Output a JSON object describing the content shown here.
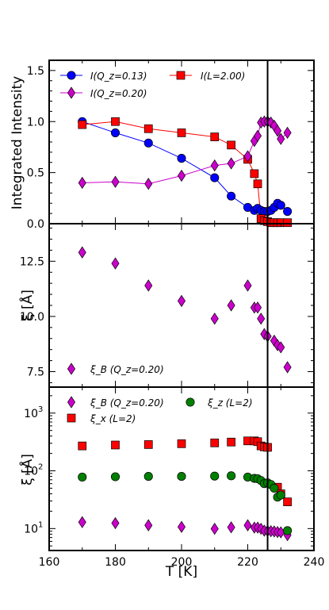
{
  "chart_data": [
    {
      "type": "line",
      "ylabel": "Integrated Intensity",
      "xlim": [
        160,
        240
      ],
      "ylim": [
        0.0,
        1.6
      ],
      "yticks": [
        "0.0",
        "0.5",
        "1.0",
        "1.5"
      ],
      "vline_x": 226,
      "legend": "top-left, two columns",
      "series": [
        {
          "name": "I(Q_z=0.13)",
          "color": "#0000ff",
          "marker": "circle",
          "line": true,
          "x": [
            170,
            180,
            190,
            200,
            210,
            215,
            220,
            222,
            223,
            224,
            225,
            226,
            227,
            228,
            229,
            230,
            232
          ],
          "y": [
            1.0,
            0.89,
            0.79,
            0.64,
            0.45,
            0.27,
            0.16,
            0.13,
            0.15,
            0.13,
            0.12,
            0.12,
            0.13,
            0.16,
            0.2,
            0.18,
            0.12
          ]
        },
        {
          "name": "I(L=2.00)",
          "color": "#ff0000",
          "marker": "square",
          "line": true,
          "x": [
            170,
            180,
            190,
            200,
            210,
            215,
            220,
            222,
            223,
            224,
            225,
            226,
            227,
            228,
            229,
            230,
            232
          ],
          "y": [
            0.97,
            1.0,
            0.93,
            0.89,
            0.85,
            0.77,
            0.63,
            0.49,
            0.39,
            0.05,
            0.03,
            0.02,
            0.01,
            0.01,
            0.01,
            0.01,
            0.01
          ]
        },
        {
          "name": "I(Q_z=0.20)",
          "color": "#cc00cc",
          "marker": "diamond",
          "line": true,
          "x": [
            170,
            180,
            190,
            200,
            210,
            215,
            220,
            222,
            223,
            224,
            225,
            226,
            227,
            228,
            229,
            230,
            232
          ],
          "y": [
            0.4,
            0.41,
            0.39,
            0.47,
            0.57,
            0.59,
            0.66,
            0.81,
            0.86,
            0.99,
            1.0,
            1.0,
            0.99,
            0.96,
            0.91,
            0.83,
            0.89
          ]
        }
      ]
    },
    {
      "type": "scatter",
      "ylabel": "ξ [Å]",
      "xlim": [
        160,
        240
      ],
      "ylim": [
        6.8,
        14.2
      ],
      "yticks": [
        "7.5",
        "10.0",
        "12.5"
      ],
      "vline_x": 226,
      "legend": "bottom-left",
      "series": [
        {
          "name": "ξ_B (Q_z=0.20)",
          "color": "#cc00cc",
          "marker": "diamond",
          "x": [
            170,
            180,
            190,
            200,
            210,
            215,
            220,
            222,
            223,
            224,
            225,
            226,
            228,
            229,
            230,
            232
          ],
          "y": [
            12.9,
            12.4,
            11.4,
            10.7,
            9.9,
            10.5,
            11.4,
            10.4,
            10.4,
            9.9,
            9.2,
            9.1,
            8.9,
            8.7,
            8.6,
            7.7
          ]
        }
      ]
    },
    {
      "type": "scatter",
      "xlabel": "T [K]",
      "ylabel": "ξ [Å]",
      "xlim": [
        160,
        240
      ],
      "ylim_log10": [
        0.62,
        3.45
      ],
      "yscale": "log",
      "yticks": [
        "10^1",
        "10^2",
        "10^3"
      ],
      "xticks": [
        "160",
        "180",
        "200",
        "220",
        "240"
      ],
      "vline_x": 226,
      "legend": "top, two columns",
      "series": [
        {
          "name": "ξ_B (Q_z=0.20)",
          "color": "#cc00cc",
          "marker": "diamond",
          "x": [
            170,
            180,
            190,
            200,
            210,
            215,
            220,
            222,
            223,
            224,
            225,
            226,
            227,
            228,
            229,
            230,
            232
          ],
          "y": [
            12.9,
            12.4,
            11.4,
            10.7,
            9.9,
            10.5,
            11.4,
            10.4,
            10.4,
            9.9,
            9.2,
            9.1,
            9.0,
            8.9,
            8.7,
            8.6,
            7.7
          ]
        },
        {
          "name": "ξ_x (L=2)",
          "color": "#ff0000",
          "marker": "square",
          "x": [
            170,
            180,
            190,
            200,
            210,
            215,
            220,
            222,
            223,
            224,
            225,
            226,
            229,
            230,
            232
          ],
          "y": [
            270,
            280,
            285,
            295,
            305,
            315,
            330,
            330,
            320,
            270,
            260,
            255,
            52,
            40,
            29
          ]
        },
        {
          "name": "ξ_z (L=2)",
          "color": "#008000",
          "marker": "circle",
          "x": [
            170,
            180,
            190,
            200,
            210,
            215,
            220,
            222,
            223,
            224,
            225,
            226,
            227,
            228,
            229,
            230,
            232
          ],
          "y": [
            78,
            79,
            80,
            80,
            81,
            82,
            78,
            74,
            73,
            68,
            60,
            62,
            58,
            50,
            35,
            38,
            9.2
          ]
        }
      ]
    }
  ],
  "legend_labels": {
    "p1_a": "I(Q_z=0.13)",
    "p1_b": "I(L=2.00)",
    "p1_c": "I(Q_z=0.20)",
    "p2_a": "ξ_B (Q_z=0.20)",
    "p3_a": "ξ_B (Q_z=0.20)",
    "p3_b": "ξ_z (L=2)",
    "p3_c": "ξ_x (L=2)"
  },
  "axis_labels": {
    "p1_y": "Integrated Intensity",
    "p2_y": "ξ [Å]",
    "p3_y": "ξ [Å]",
    "x": "T [K]"
  }
}
